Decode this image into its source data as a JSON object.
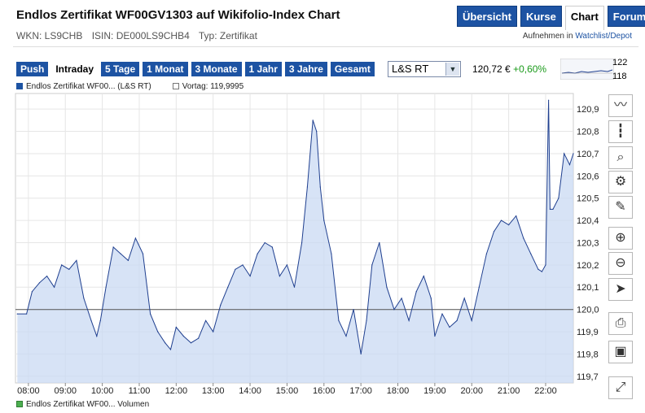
{
  "header": {
    "title": "Endlos Zertifikat WF00GV1303 auf Wikifolio-Index Chart",
    "wkn": "WKN: LS9CHB",
    "isin": "ISIN: DE000LS9CHB4",
    "typ": "Typ: Zertifikat",
    "tabs": [
      "Übersicht",
      "Kurse",
      "Chart",
      "Forum"
    ],
    "active_tab": "Chart",
    "watch_prefix": "Aufnehmen in",
    "watch_link": "Watchlist/Depot"
  },
  "toolbar": {
    "ranges": [
      "Push",
      "Intraday",
      "5 Tage",
      "1 Monat",
      "3 Monate",
      "1 Jahr",
      "3 Jahre",
      "Gesamt"
    ],
    "active_range": "Intraday",
    "exchange": "L&S RT",
    "price": "120,72 €",
    "change": "+0,60%",
    "mini_high": "122",
    "mini_low": "118"
  },
  "legend": {
    "series": "Endlos Zertifikat WF00... (L&S RT)",
    "previous": "Vortag: 119,9995",
    "volume": "Endlos Zertifikat WF00... Volumen"
  },
  "colors": {
    "accent": "#1d53a3",
    "line": "#1f3f8f",
    "fill": "#c9d9f3",
    "positive": "#1a9a1a"
  },
  "tools": [
    "line-chart-icon",
    "ohlc-chart-icon",
    "magnifier-icon",
    "settings-icon",
    "pencil-icon",
    "zoom-in-icon",
    "zoom-out-icon",
    "cursor-icon",
    "print-icon",
    "save-icon",
    "fullscreen-icon"
  ],
  "chart_data": {
    "type": "area",
    "x_ticks": [
      "08:00",
      "09:00",
      "10:00",
      "11:00",
      "12:00",
      "13:00",
      "14:00",
      "15:00",
      "16:00",
      "17:00",
      "18:00",
      "19:00",
      "20:00",
      "21:00",
      "22:00"
    ],
    "y_ticks": [
      "119,7",
      "119,8",
      "119,9",
      "120,0",
      "120,1",
      "120,2",
      "120,3",
      "120,4",
      "120,5",
      "120,6",
      "120,7",
      "120,8",
      "120,9"
    ],
    "ylim": [
      119.67,
      120.97
    ],
    "xlim": [
      7.65,
      22.75
    ],
    "reference_line": 119.9995,
    "series": [
      {
        "x": [
          7.7,
          7.95,
          8.1,
          8.3,
          8.5,
          8.7,
          8.9,
          9.1,
          9.3,
          9.5,
          9.7,
          9.85,
          9.95,
          10.1,
          10.3,
          10.5,
          10.7,
          10.9,
          11.1,
          11.3,
          11.5,
          11.7,
          11.85,
          12.0,
          12.2,
          12.4,
          12.6,
          12.8,
          13.0,
          13.2,
          13.4,
          13.6,
          13.8,
          14.0,
          14.2,
          14.4,
          14.6,
          14.8,
          15.0,
          15.2,
          15.4,
          15.55,
          15.7,
          15.8,
          15.9,
          16.0,
          16.2,
          16.4,
          16.6,
          16.8,
          17.0,
          17.15,
          17.3,
          17.5,
          17.7,
          17.9,
          18.1,
          18.3,
          18.5,
          18.7,
          18.9,
          19.0,
          19.2,
          19.4,
          19.6,
          19.8,
          20.0,
          20.2,
          20.4,
          20.6,
          20.8,
          21.0,
          21.2,
          21.4,
          21.6,
          21.8,
          21.9,
          22.0,
          22.08,
          22.12,
          22.2,
          22.35,
          22.5,
          22.65,
          22.75
        ],
        "y": [
          119.98,
          119.98,
          120.08,
          120.12,
          120.15,
          120.1,
          120.2,
          120.18,
          120.22,
          120.05,
          119.95,
          119.88,
          119.95,
          120.1,
          120.28,
          120.25,
          120.22,
          120.32,
          120.25,
          119.98,
          119.9,
          119.85,
          119.82,
          119.92,
          119.88,
          119.85,
          119.87,
          119.95,
          119.9,
          120.02,
          120.1,
          120.18,
          120.2,
          120.15,
          120.25,
          120.3,
          120.28,
          120.15,
          120.2,
          120.1,
          120.3,
          120.55,
          120.85,
          120.8,
          120.55,
          120.4,
          120.25,
          119.95,
          119.88,
          120.0,
          119.8,
          119.95,
          120.2,
          120.3,
          120.1,
          120.0,
          120.05,
          119.95,
          120.08,
          120.15,
          120.05,
          119.88,
          119.98,
          119.92,
          119.95,
          120.05,
          119.95,
          120.1,
          120.25,
          120.35,
          120.4,
          120.38,
          120.42,
          120.32,
          120.25,
          120.18,
          120.17,
          120.2,
          120.94,
          120.45,
          120.45,
          120.5,
          120.7,
          120.65,
          120.7
        ]
      }
    ]
  }
}
